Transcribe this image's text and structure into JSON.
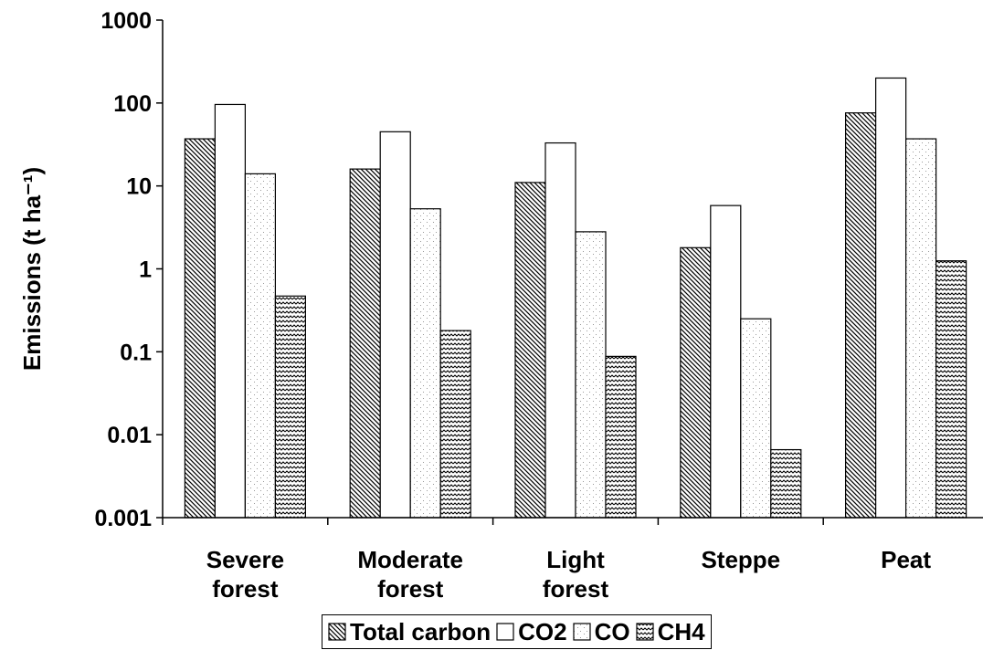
{
  "chart_data": {
    "type": "bar",
    "y_label": "Emissions (t ha⁻¹)",
    "categories": [
      "Severe forest",
      "Moderate forest",
      "Light forest",
      "Steppe",
      "Peat"
    ],
    "series": [
      {
        "name": "Total carbon",
        "color": "#000000",
        "pattern": "diagonal",
        "values": [
          37,
          16,
          11,
          1.8,
          76
        ]
      },
      {
        "name": "CO2",
        "color": "#ffffff",
        "pattern": "solid",
        "values": [
          96,
          45,
          33,
          5.8,
          200
        ]
      },
      {
        "name": "CO",
        "color": "#9a9a9a",
        "pattern": "dots",
        "values": [
          14,
          5.3,
          2.8,
          0.25,
          37
        ]
      },
      {
        "name": "CH4",
        "color": "#000000",
        "pattern": "wave",
        "values": [
          0.47,
          0.18,
          0.088,
          0.0066,
          1.25
        ]
      }
    ],
    "ylim": [
      0.001,
      1000
    ],
    "log": true,
    "yticks": [
      0.001,
      0.01,
      0.1,
      1,
      10,
      100,
      1000
    ],
    "grid": false,
    "legend": "bottom"
  }
}
